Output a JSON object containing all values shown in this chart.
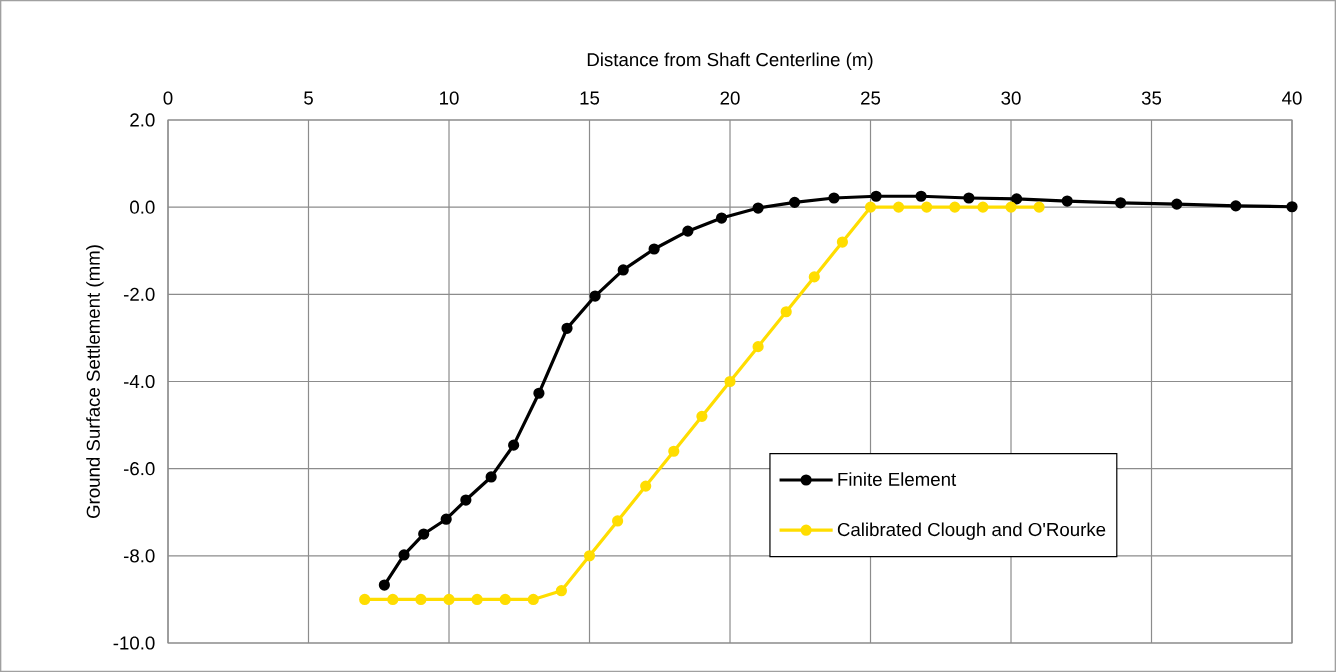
{
  "chart_data": {
    "type": "line",
    "xlabel": "Distance from Shaft Centerline (m)",
    "ylabel": "Ground Surface Settlement (mm)",
    "xlim": [
      0,
      40
    ],
    "xticks": [
      0,
      5,
      10,
      15,
      20,
      25,
      30,
      35,
      40
    ],
    "ylim": [
      -10,
      2
    ],
    "yticks": [
      {
        "value": -10,
        "label": "-10.0"
      },
      {
        "value": -8,
        "label": "-8.0"
      },
      {
        "value": -6,
        "label": "-6.0"
      },
      {
        "value": -4,
        "label": "-4.0"
      },
      {
        "value": -2,
        "label": "-2.0"
      },
      {
        "value": 0,
        "label": "0.0"
      },
      {
        "value": 2,
        "label": "2.0"
      }
    ],
    "grid": true,
    "legend": "right",
    "marker": "circle",
    "line_style": "solid",
    "series": [
      {
        "name": "Finite Element",
        "color": "#000000",
        "x": [
          7.7,
          8.4,
          9.1,
          9.9,
          10.6,
          11.5,
          12.3,
          13.2,
          14.2,
          15.2,
          16.2,
          17.3,
          18.5,
          19.7,
          21.0,
          22.3,
          23.7,
          25.2,
          26.8,
          28.5,
          30.2,
          32.0,
          33.9,
          35.9,
          38.0,
          40.0
        ],
        "values": [
          -8.67,
          -7.98,
          -7.5,
          -7.16,
          -6.72,
          -6.19,
          -5.46,
          -4.27,
          -2.78,
          -2.04,
          -1.44,
          -0.96,
          -0.55,
          -0.25,
          -0.02,
          0.11,
          0.21,
          0.25,
          0.25,
          0.21,
          0.19,
          0.14,
          0.1,
          0.07,
          0.03,
          0.01
        ]
      },
      {
        "name": "Calibrated Clough and O'Rourke",
        "color": "#ffdd00",
        "x": [
          7,
          8,
          9,
          10,
          11,
          12,
          13,
          14,
          15,
          16,
          17,
          18,
          19,
          20,
          21,
          22,
          23,
          24,
          25,
          26,
          27,
          28,
          29,
          30,
          31
        ],
        "values": [
          -9,
          -9,
          -9,
          -9,
          -9,
          -9,
          -9,
          -8.8,
          -8,
          -7.2,
          -6.4,
          -5.6,
          -4.8,
          -4.0,
          -3.2,
          -2.4,
          -1.6,
          -0.8,
          0,
          0,
          0,
          0,
          0,
          0,
          0
        ]
      }
    ]
  }
}
